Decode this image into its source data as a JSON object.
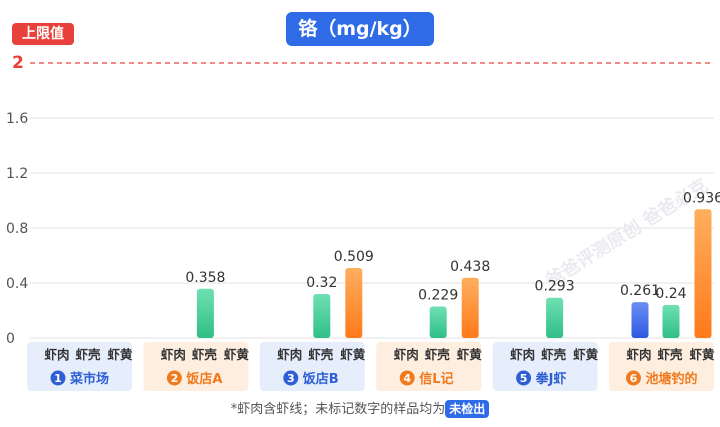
{
  "title": "铬（mg/kg）",
  "limit": {
    "label": "上限值",
    "value": 2
  },
  "footnote": {
    "text": "*虾肉含虾线；未标记数字的样品均为",
    "badge": "未检出"
  },
  "watermark": "爸爸评测原创 爸爸必克",
  "colors": {
    "green": "#3ecb93",
    "orange": "#ff8a2a",
    "blue": "#3a66e8",
    "limit_line": "#e8403a",
    "group_bg_blue": "#e6eefc",
    "group_bg_orange": "#fdeee0",
    "group_text_blue": "#2f5fd6",
    "group_text_orange": "#f07a1e"
  },
  "chart_data": {
    "type": "bar",
    "ylim": [
      0,
      2
    ],
    "yticks": [
      "0",
      "0.4",
      "0.8",
      "1.2",
      "1.6",
      "2"
    ],
    "sub_categories": [
      "虾肉",
      "虾壳",
      "虾黄"
    ],
    "groups": [
      {
        "num": "1",
        "name": "菜市场",
        "theme": "blue",
        "values": [
          null,
          null,
          null
        ],
        "labels": [
          "",
          "",
          ""
        ],
        "colors": [
          "green",
          "green",
          "orange"
        ]
      },
      {
        "num": "2",
        "name": "饭店A",
        "theme": "orange",
        "values": [
          null,
          0.358,
          null
        ],
        "labels": [
          "",
          "0.358",
          ""
        ],
        "colors": [
          "green",
          "green",
          "orange"
        ]
      },
      {
        "num": "3",
        "name": "饭店B",
        "theme": "blue",
        "values": [
          null,
          0.32,
          0.509
        ],
        "labels": [
          "",
          "0.32",
          "0.509"
        ],
        "colors": [
          "green",
          "green",
          "orange"
        ]
      },
      {
        "num": "4",
        "name": "信L记",
        "theme": "orange",
        "values": [
          null,
          0.229,
          0.438
        ],
        "labels": [
          "",
          "0.229",
          "0.438"
        ],
        "colors": [
          "green",
          "green",
          "orange"
        ]
      },
      {
        "num": "5",
        "name": "拳J虾",
        "theme": "blue",
        "values": [
          null,
          0.293,
          null
        ],
        "labels": [
          "",
          "0.293",
          ""
        ],
        "colors": [
          "green",
          "green",
          "orange"
        ]
      },
      {
        "num": "6",
        "name": "池塘钓的",
        "theme": "orange",
        "values": [
          0.261,
          0.24,
          0.936
        ],
        "labels": [
          "0.261",
          "0.24",
          "0.936"
        ],
        "colors": [
          "blue",
          "green",
          "orange"
        ]
      }
    ]
  }
}
